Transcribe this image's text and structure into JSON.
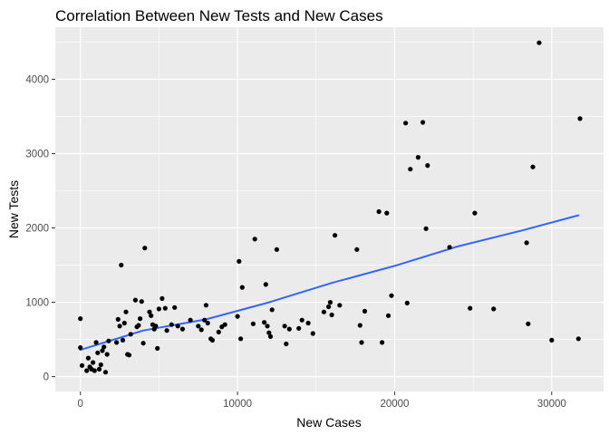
{
  "chart_data": {
    "type": "scatter",
    "title": "Correlation Between New Tests and New Cases",
    "xlabel": "New Cases",
    "ylabel": "New Tests",
    "xlim": [
      -1600,
      33300
    ],
    "ylim": [
      -200,
      4700
    ],
    "xticks": [
      0,
      10000,
      20000,
      30000
    ],
    "yticks": [
      0,
      1000,
      2000,
      3000,
      4000
    ],
    "xtick_labels": [
      "0",
      "10000",
      "20000",
      "30000"
    ],
    "ytick_labels": [
      "0",
      "1000",
      "2000",
      "3000",
      "4000"
    ],
    "grid": true,
    "points": [
      [
        0,
        780
      ],
      [
        0,
        390
      ],
      [
        100,
        150
      ],
      [
        400,
        80
      ],
      [
        500,
        250
      ],
      [
        600,
        130
      ],
      [
        700,
        100
      ],
      [
        800,
        190
      ],
      [
        900,
        80
      ],
      [
        1000,
        460
      ],
      [
        1100,
        320
      ],
      [
        1200,
        100
      ],
      [
        1300,
        160
      ],
      [
        1400,
        350
      ],
      [
        1500,
        400
      ],
      [
        1600,
        60
      ],
      [
        1700,
        300
      ],
      [
        1800,
        480
      ],
      [
        2300,
        460
      ],
      [
        2400,
        770
      ],
      [
        2500,
        680
      ],
      [
        2600,
        1500
      ],
      [
        2700,
        490
      ],
      [
        2800,
        720
      ],
      [
        2900,
        870
      ],
      [
        3000,
        300
      ],
      [
        3100,
        290
      ],
      [
        3200,
        570
      ],
      [
        3500,
        1030
      ],
      [
        3600,
        670
      ],
      [
        3700,
        690
      ],
      [
        3800,
        780
      ],
      [
        3900,
        1010
      ],
      [
        4000,
        450
      ],
      [
        4100,
        1730
      ],
      [
        4400,
        870
      ],
      [
        4500,
        820
      ],
      [
        4600,
        700
      ],
      [
        4700,
        640
      ],
      [
        4800,
        680
      ],
      [
        4900,
        380
      ],
      [
        5000,
        910
      ],
      [
        5200,
        1050
      ],
      [
        5400,
        920
      ],
      [
        5500,
        620
      ],
      [
        5800,
        700
      ],
      [
        6000,
        930
      ],
      [
        6200,
        680
      ],
      [
        6500,
        640
      ],
      [
        7000,
        760
      ],
      [
        7500,
        680
      ],
      [
        7700,
        630
      ],
      [
        7900,
        760
      ],
      [
        8000,
        960
      ],
      [
        8100,
        720
      ],
      [
        8300,
        510
      ],
      [
        8400,
        490
      ],
      [
        8800,
        600
      ],
      [
        9000,
        670
      ],
      [
        9200,
        700
      ],
      [
        10000,
        810
      ],
      [
        10100,
        1550
      ],
      [
        10200,
        510
      ],
      [
        10300,
        1200
      ],
      [
        11000,
        710
      ],
      [
        11100,
        1850
      ],
      [
        11700,
        730
      ],
      [
        11800,
        1240
      ],
      [
        11900,
        680
      ],
      [
        12000,
        590
      ],
      [
        12100,
        540
      ],
      [
        12200,
        900
      ],
      [
        12500,
        1710
      ],
      [
        13000,
        680
      ],
      [
        13100,
        440
      ],
      [
        13300,
        640
      ],
      [
        13900,
        650
      ],
      [
        14100,
        760
      ],
      [
        14500,
        720
      ],
      [
        14800,
        580
      ],
      [
        15500,
        870
      ],
      [
        15800,
        940
      ],
      [
        15900,
        1000
      ],
      [
        16000,
        830
      ],
      [
        16200,
        1900
      ],
      [
        16500,
        960
      ],
      [
        17600,
        1710
      ],
      [
        17800,
        690
      ],
      [
        17900,
        460
      ],
      [
        18100,
        880
      ],
      [
        19000,
        2220
      ],
      [
        19200,
        460
      ],
      [
        19500,
        2200
      ],
      [
        19600,
        820
      ],
      [
        19800,
        1090
      ],
      [
        20700,
        3410
      ],
      [
        20800,
        990
      ],
      [
        21000,
        2790
      ],
      [
        21500,
        2950
      ],
      [
        21800,
        3420
      ],
      [
        22000,
        1990
      ],
      [
        22100,
        2840
      ],
      [
        23500,
        1740
      ],
      [
        24800,
        920
      ],
      [
        25100,
        2200
      ],
      [
        26300,
        910
      ],
      [
        28400,
        1800
      ],
      [
        28500,
        710
      ],
      [
        28800,
        2820
      ],
      [
        29200,
        4490
      ],
      [
        30000,
        490
      ],
      [
        31700,
        510
      ],
      [
        31800,
        3470
      ]
    ],
    "trend": {
      "label": "smooth",
      "color": "#3366ff",
      "points": [
        [
          0,
          360
        ],
        [
          4000,
          620
        ],
        [
          8000,
          770
        ],
        [
          12000,
          1000
        ],
        [
          16000,
          1260
        ],
        [
          20000,
          1490
        ],
        [
          24000,
          1750
        ],
        [
          28000,
          1960
        ],
        [
          31700,
          2170
        ]
      ]
    },
    "colors": {
      "panel": "#ebebeb",
      "grid_major": "#ffffff",
      "point": "#000000",
      "tick_text": "#4d4d4d"
    }
  }
}
